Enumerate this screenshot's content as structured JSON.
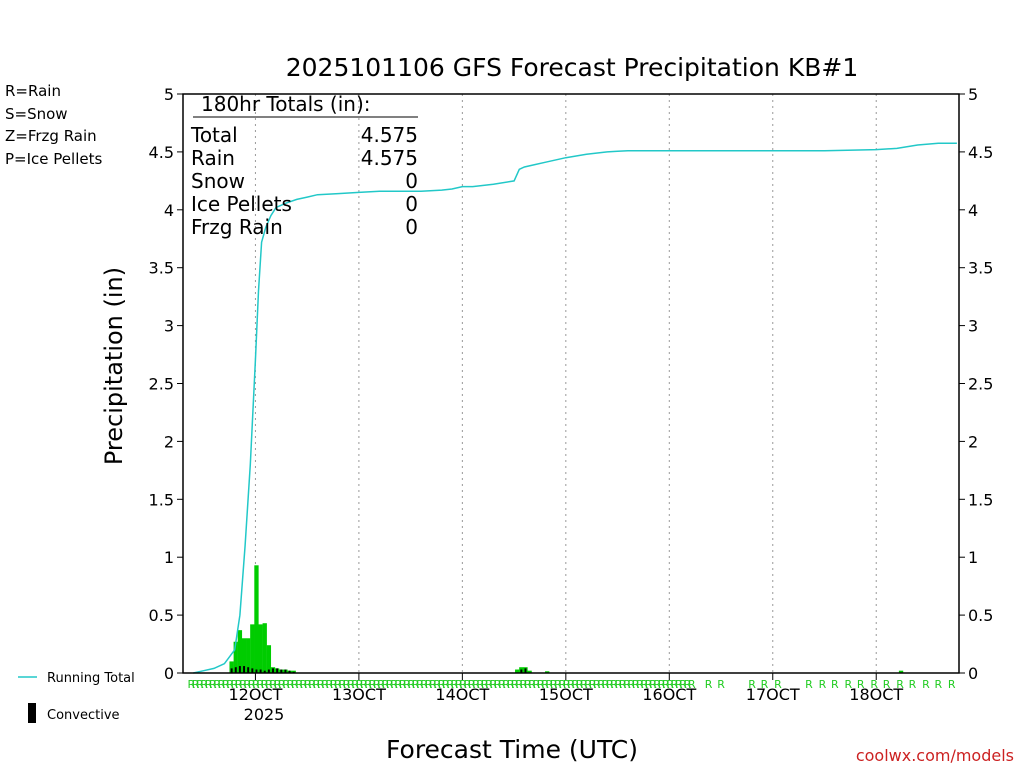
{
  "chart_data": {
    "type": "bar",
    "title": "2025101106 GFS Forecast Precipitation KB#1",
    "xlabel": "Forecast Time (UTC)",
    "ylabel": "Precipitation (in)",
    "xlim": [
      11.3,
      18.8
    ],
    "ylim": [
      0,
      5
    ],
    "yticks": [
      "0",
      "0.5",
      "1",
      "1.5",
      "2",
      "2.5",
      "3",
      "3.5",
      "4",
      "4.5",
      "5"
    ],
    "xticks": [
      {
        "day": 12,
        "label": "12OCT"
      },
      {
        "day": 13,
        "label": "13OCT"
      },
      {
        "day": 14,
        "label": "14OCT"
      },
      {
        "day": 15,
        "label": "15OCT"
      },
      {
        "day": 16,
        "label": "16OCT"
      },
      {
        "day": 17,
        "label": "17OCT"
      },
      {
        "day": 18,
        "label": "18OCT"
      }
    ],
    "year_label": "2025",
    "legend_types": [
      {
        "text": "R=Rain",
        "color": "#22cc22"
      },
      {
        "text": "S=Snow",
        "color": "#3355dd"
      },
      {
        "text": "Z=Frzg Rain",
        "color": "#ee8833"
      },
      {
        "text": "P=Ice Pellets",
        "color": "#dd2288"
      }
    ],
    "legend_series": [
      {
        "text": "Running Total",
        "color": "#22c8c8"
      },
      {
        "text": "Convective",
        "color": "#000000"
      }
    ],
    "totals": {
      "header": "180hr Totals (in):",
      "rows": [
        {
          "label": "Total",
          "value": "4.575"
        },
        {
          "label": "Rain",
          "value": "4.575"
        },
        {
          "label": "Snow",
          "value": "0"
        },
        {
          "label": "Ice Pellets",
          "value": "0"
        },
        {
          "label": "Frzg Rain",
          "value": "0"
        }
      ]
    },
    "running_total": {
      "color": "#22c8c8",
      "x": [
        11.4,
        11.5,
        11.6,
        11.7,
        11.8,
        11.85,
        11.9,
        11.95,
        12.0,
        12.03,
        12.06,
        12.1,
        12.15,
        12.2,
        12.3,
        12.4,
        12.5,
        12.6,
        12.8,
        13.0,
        13.2,
        13.4,
        13.6,
        13.8,
        13.9,
        14.0,
        14.1,
        14.3,
        14.5,
        14.55,
        14.6,
        14.7,
        14.8,
        15.0,
        15.2,
        15.4,
        15.5,
        15.6,
        15.8,
        16.0,
        16.5,
        17.0,
        17.5,
        18.0,
        18.2,
        18.4,
        18.6,
        18.78
      ],
      "y": [
        0.0,
        0.02,
        0.04,
        0.08,
        0.2,
        0.5,
        1.1,
        1.8,
        2.7,
        3.3,
        3.72,
        3.85,
        3.95,
        4.02,
        4.06,
        4.09,
        4.11,
        4.13,
        4.14,
        4.15,
        4.16,
        4.16,
        4.16,
        4.17,
        4.18,
        4.2,
        4.2,
        4.22,
        4.25,
        4.35,
        4.37,
        4.39,
        4.41,
        4.45,
        4.48,
        4.5,
        4.505,
        4.51,
        4.51,
        4.51,
        4.51,
        4.51,
        4.51,
        4.52,
        4.53,
        4.56,
        4.575,
        4.575
      ]
    },
    "series": [
      {
        "name": "Total (Rain)",
        "color": "#00cc00",
        "x": [
          11.77,
          11.81,
          11.85,
          11.89,
          11.93,
          11.97,
          12.01,
          12.05,
          12.09,
          12.13,
          12.17,
          12.21,
          12.25,
          12.29,
          12.33,
          12.37,
          14.53,
          14.57,
          14.61,
          14.65,
          14.82,
          18.24
        ],
        "values": [
          0.1,
          0.27,
          0.37,
          0.3,
          0.3,
          0.42,
          0.93,
          0.42,
          0.43,
          0.24,
          0.05,
          0.04,
          0.03,
          0.03,
          0.02,
          0.02,
          0.03,
          0.05,
          0.05,
          0.02,
          0.015,
          0.02
        ]
      },
      {
        "name": "Convective",
        "color": "#000000",
        "x": [
          11.77,
          11.81,
          11.85,
          11.89,
          11.93,
          11.97,
          12.01,
          12.05,
          12.09,
          12.13,
          12.17,
          12.21,
          12.25,
          12.29,
          12.33,
          12.37,
          14.57,
          14.61
        ],
        "values": [
          0.04,
          0.05,
          0.06,
          0.06,
          0.05,
          0.04,
          0.03,
          0.03,
          0.02,
          0.03,
          0.04,
          0.04,
          0.03,
          0.03,
          0.02,
          0.01,
          0.03,
          0.04
        ]
      }
    ],
    "ptype_markers": {
      "symbol": "R",
      "color": "#22cc22",
      "dense_from": 11.38,
      "dense_to": 16.23,
      "dense_step": 0.0417,
      "sparse_x": [
        16.38,
        16.5,
        16.8,
        16.92,
        17.05,
        17.35,
        17.48,
        17.6,
        17.73,
        17.85,
        17.98,
        18.1,
        18.23,
        18.35,
        18.48,
        18.6,
        18.73
      ]
    }
  },
  "credit": "coolwx.com/models"
}
